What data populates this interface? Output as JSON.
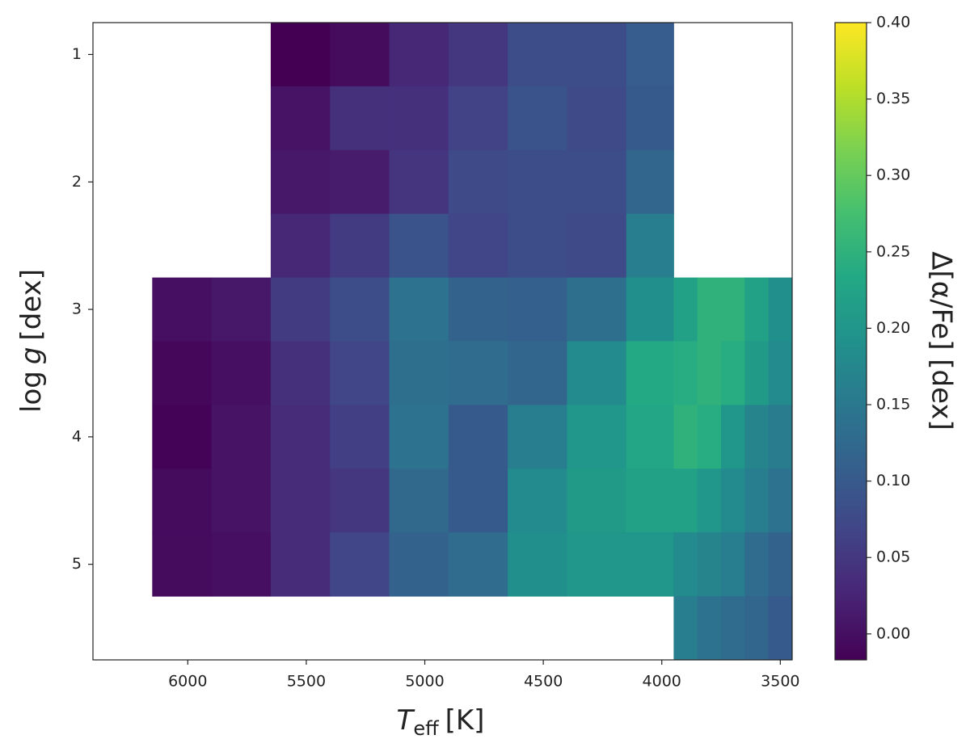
{
  "chart_data": {
    "type": "heatmap",
    "x_label": {
      "symbol": "T",
      "subscript": "eff",
      "unit": "[K]"
    },
    "y_label": {
      "prefix": "log",
      "symbol": "g",
      "unit": "[dex]"
    },
    "colorbar_label": "Δ[α/Fe] [dex]",
    "x_edges": [
      6150,
      5900,
      5650,
      5400,
      5150,
      4900,
      4650,
      4400,
      4150,
      3950,
      3850,
      3750,
      3650,
      3550,
      3450
    ],
    "y_edges": [
      0.75,
      1.25,
      1.75,
      2.25,
      2.75,
      3.25,
      3.75,
      4.25,
      4.75,
      5.25,
      5.75
    ],
    "values": [
      [
        null,
        null,
        -0.017,
        -0.005,
        0.03,
        0.05,
        0.08,
        0.08,
        0.105,
        null,
        null,
        null,
        null,
        null
      ],
      [
        null,
        null,
        0.004,
        0.04,
        0.04,
        0.065,
        0.09,
        0.075,
        0.1,
        null,
        null,
        null,
        null,
        null
      ],
      [
        null,
        null,
        0.01,
        0.015,
        0.045,
        0.075,
        0.08,
        0.08,
        0.12,
        null,
        null,
        null,
        null,
        null
      ],
      [
        null,
        null,
        0.03,
        0.055,
        0.09,
        0.07,
        0.08,
        0.075,
        0.16,
        null,
        null,
        null,
        null,
        null
      ],
      [
        0.0,
        0.01,
        0.055,
        0.08,
        0.14,
        0.115,
        0.11,
        0.135,
        0.19,
        0.22,
        0.25,
        0.25,
        0.22,
        0.19
      ],
      [
        -0.01,
        0.0,
        0.04,
        0.07,
        0.135,
        0.13,
        0.12,
        0.18,
        0.235,
        0.24,
        0.25,
        0.24,
        0.21,
        0.18
      ],
      [
        -0.015,
        0.005,
        0.035,
        0.06,
        0.14,
        0.1,
        0.16,
        0.2,
        0.23,
        0.25,
        0.24,
        0.2,
        0.17,
        0.155
      ],
      [
        -0.005,
        0.005,
        0.035,
        0.05,
        0.125,
        0.1,
        0.18,
        0.21,
        0.22,
        0.22,
        0.2,
        0.18,
        0.16,
        0.14
      ],
      [
        -0.005,
        0.0,
        0.035,
        0.07,
        0.115,
        0.13,
        0.19,
        0.2,
        0.2,
        0.18,
        0.17,
        0.16,
        0.13,
        0.115
      ],
      [
        null,
        null,
        null,
        null,
        null,
        null,
        null,
        null,
        null,
        0.16,
        0.14,
        0.13,
        0.12,
        0.1
      ]
    ],
    "xlim": [
      6400,
      3450
    ],
    "ylim": [
      5.75,
      0.75
    ],
    "xticks": [
      6000,
      5500,
      5000,
      4500,
      4000,
      3500
    ],
    "yticks": [
      1,
      2,
      3,
      4,
      5
    ],
    "clim": [
      -0.017,
      0.4
    ],
    "cticks": [
      {
        "value": 0,
        "label": "0.00"
      },
      {
        "value": 0.05,
        "label": "0.05"
      },
      {
        "value": 0.1,
        "label": "0.10"
      },
      {
        "value": 0.15,
        "label": "0.15"
      },
      {
        "value": 0.2,
        "label": "0.20"
      },
      {
        "value": 0.25,
        "label": "0.25"
      },
      {
        "value": 0.3,
        "label": "0.30"
      },
      {
        "value": 0.35,
        "label": "0.35"
      },
      {
        "value": 0.4,
        "label": "0.40"
      }
    ],
    "colormap": [
      "#440154",
      "#482475",
      "#414487",
      "#355f8d",
      "#2a788e",
      "#21918c",
      "#22a884",
      "#44bf70",
      "#7ad151",
      "#bddf26",
      "#fde725"
    ]
  }
}
